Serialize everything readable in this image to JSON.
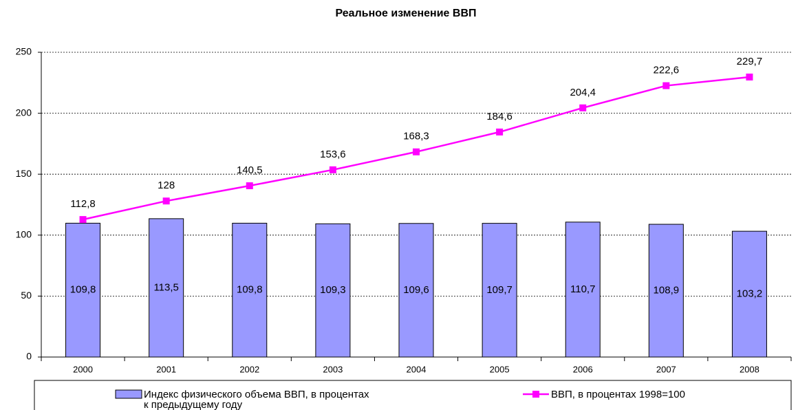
{
  "chart_data": {
    "type": "bar_line",
    "title": "Реальное изменение ВВП",
    "categories": [
      "2000",
      "2001",
      "2002",
      "2003",
      "2004",
      "2005",
      "2006",
      "2007",
      "2008"
    ],
    "series": [
      {
        "name": "Индекс физического объема ВВП, в процентах к предыдущему году",
        "type": "bar",
        "color": "#9999ff",
        "values": [
          109.8,
          113.5,
          109.8,
          109.3,
          109.6,
          109.7,
          110.7,
          108.9,
          103.2
        ],
        "value_labels": [
          "109,8",
          "113,5",
          "109,8",
          "109,3",
          "109,6",
          "109,7",
          "110,7",
          "108,9",
          "103,2"
        ]
      },
      {
        "name": "ВВП, в процентах 1998=100",
        "type": "line",
        "color": "#ff00ff",
        "values": [
          112.8,
          128,
          140.5,
          153.6,
          168.3,
          184.6,
          204.4,
          222.6,
          229.7
        ],
        "value_labels": [
          "112,8",
          "128",
          "140,5",
          "153,6",
          "168,3",
          "184,6",
          "204,4",
          "222,6",
          "229,7"
        ]
      }
    ],
    "ylim": [
      0,
      250
    ],
    "yticks": [
      0,
      50,
      100,
      150,
      200,
      250
    ],
    "grid": true
  }
}
